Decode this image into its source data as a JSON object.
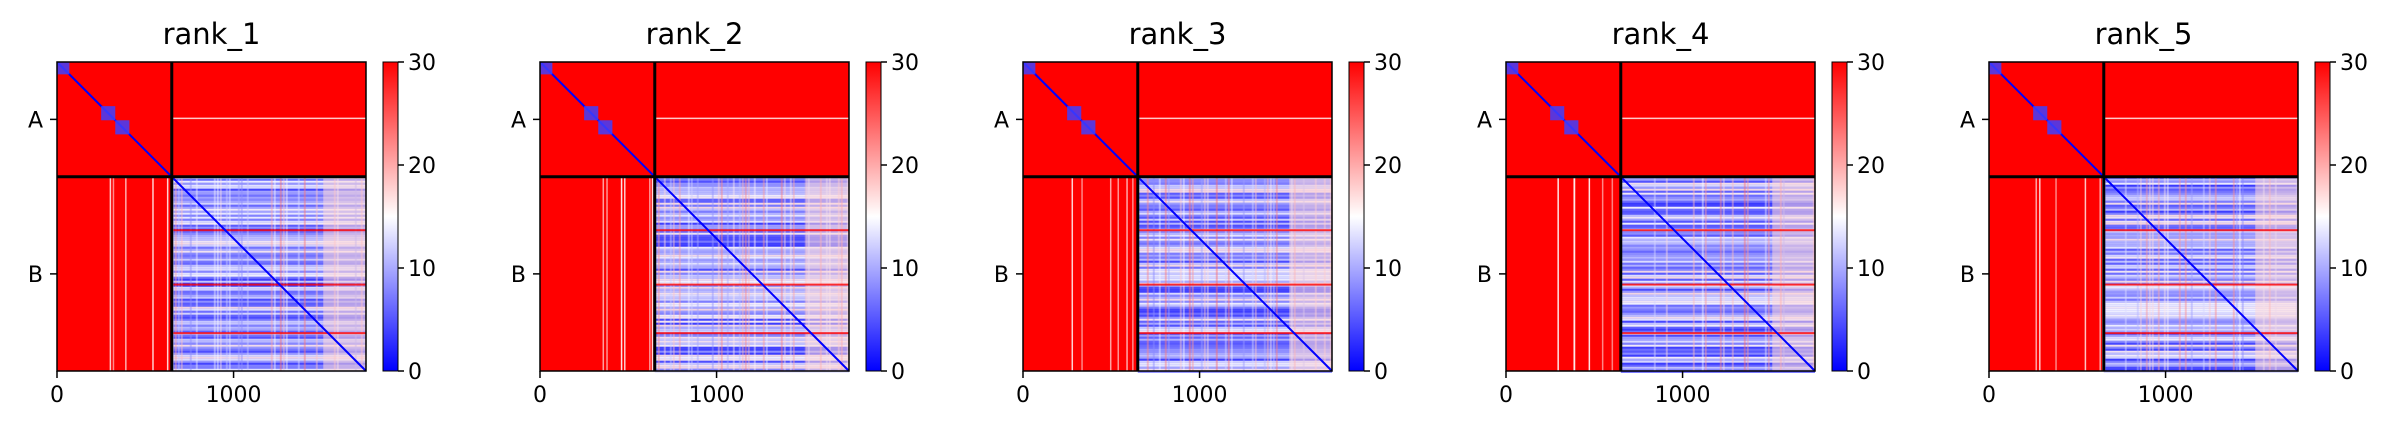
{
  "figure_colors": {
    "background": "#ffffff",
    "high": "#ff0000",
    "mid": "#ffffff",
    "low": "#0000ff",
    "grid_lines": "#000000"
  },
  "chart_data": [
    {
      "type": "heatmap",
      "title": "rank_1",
      "x_ticks": [
        0,
        1000
      ],
      "x_tick_labels": [
        "0",
        "1000"
      ],
      "x_range": [
        0,
        1750
      ],
      "y_range": [
        0,
        1750
      ],
      "chains": [
        {
          "label": "A",
          "start": 0,
          "end": 650
        },
        {
          "label": "B",
          "start": 650,
          "end": 1750
        }
      ],
      "colorbar": {
        "range": [
          0,
          30
        ],
        "ticks": [
          0,
          10,
          20,
          30
        ],
        "tick_labels": [
          "0",
          "10",
          "20",
          "30"
        ],
        "colormap": "bwr"
      }
    },
    {
      "type": "heatmap",
      "title": "rank_2",
      "x_ticks": [
        0,
        1000
      ],
      "x_tick_labels": [
        "0",
        "1000"
      ],
      "x_range": [
        0,
        1750
      ],
      "y_range": [
        0,
        1750
      ],
      "chains": [
        {
          "label": "A",
          "start": 0,
          "end": 650
        },
        {
          "label": "B",
          "start": 650,
          "end": 1750
        }
      ],
      "colorbar": {
        "range": [
          0,
          30
        ],
        "ticks": [
          0,
          10,
          20,
          30
        ],
        "tick_labels": [
          "0",
          "10",
          "20",
          "30"
        ],
        "colormap": "bwr"
      }
    },
    {
      "type": "heatmap",
      "title": "rank_3",
      "x_ticks": [
        0,
        1000
      ],
      "x_tick_labels": [
        "0",
        "1000"
      ],
      "x_range": [
        0,
        1750
      ],
      "y_range": [
        0,
        1750
      ],
      "chains": [
        {
          "label": "A",
          "start": 0,
          "end": 650
        },
        {
          "label": "B",
          "start": 650,
          "end": 1750
        }
      ],
      "colorbar": {
        "range": [
          0,
          30
        ],
        "ticks": [
          0,
          10,
          20,
          30
        ],
        "tick_labels": [
          "0",
          "10",
          "20",
          "30"
        ],
        "colormap": "bwr"
      }
    },
    {
      "type": "heatmap",
      "title": "rank_4",
      "x_ticks": [
        0,
        1000
      ],
      "x_tick_labels": [
        "0",
        "1000"
      ],
      "x_range": [
        0,
        1750
      ],
      "y_range": [
        0,
        1750
      ],
      "chains": [
        {
          "label": "A",
          "start": 0,
          "end": 650
        },
        {
          "label": "B",
          "start": 650,
          "end": 1750
        }
      ],
      "colorbar": {
        "range": [
          0,
          30
        ],
        "ticks": [
          0,
          10,
          20,
          30
        ],
        "tick_labels": [
          "0",
          "10",
          "20",
          "30"
        ],
        "colormap": "bwr"
      }
    },
    {
      "type": "heatmap",
      "title": "rank_5",
      "x_ticks": [
        0,
        1000
      ],
      "x_tick_labels": [
        "0",
        "1000"
      ],
      "x_range": [
        0,
        1750
      ],
      "y_range": [
        0,
        1750
      ],
      "chains": [
        {
          "label": "A",
          "start": 0,
          "end": 650
        },
        {
          "label": "B",
          "start": 650,
          "end": 1750
        }
      ],
      "colorbar": {
        "range": [
          0,
          30
        ],
        "ticks": [
          0,
          10,
          20,
          30
        ],
        "tick_labels": [
          "0",
          "10",
          "20",
          "30"
        ],
        "colormap": "bwr"
      }
    }
  ]
}
